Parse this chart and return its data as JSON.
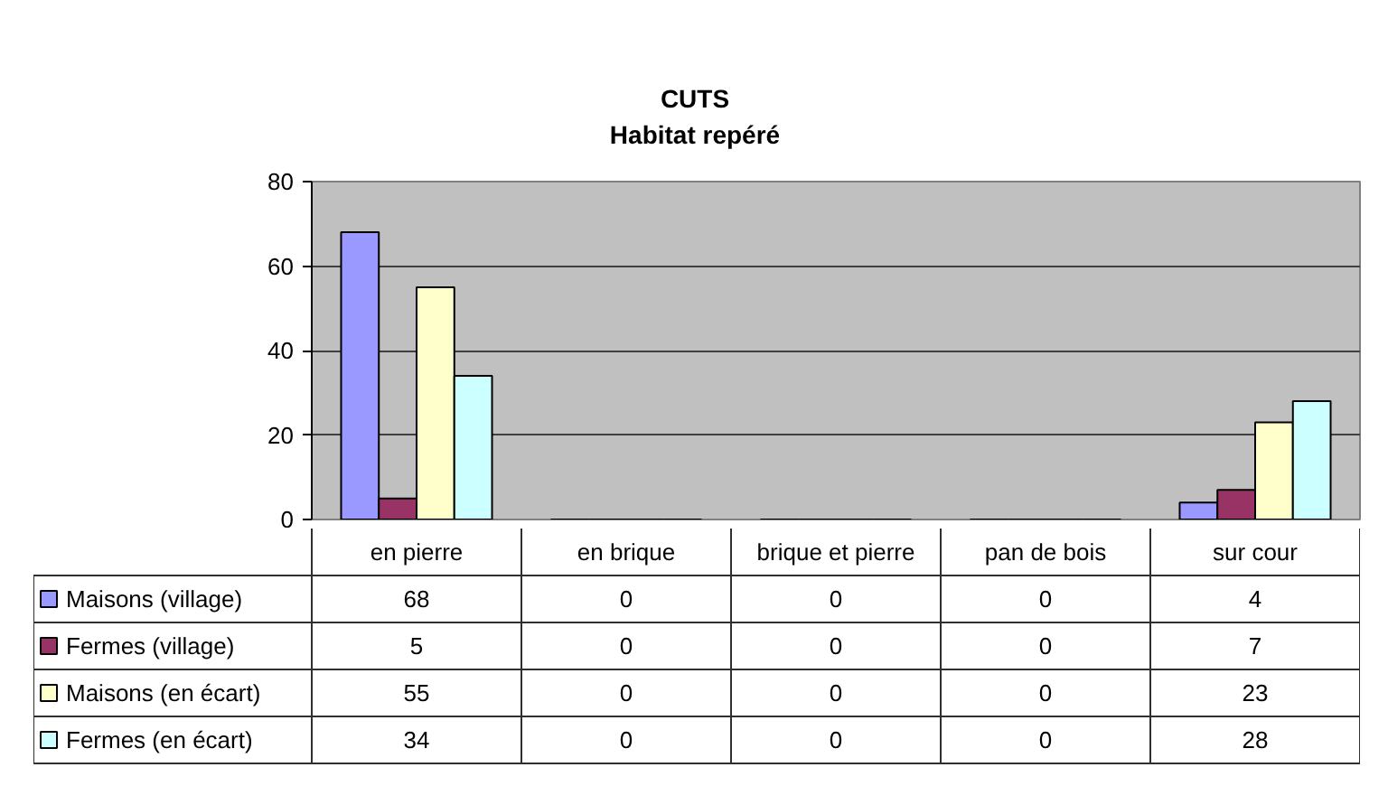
{
  "chart_data": {
    "type": "bar",
    "title": "CUTS",
    "subtitle": "Habitat repéré",
    "categories": [
      "en pierre",
      "en brique",
      "brique et pierre",
      "pan de bois",
      "sur cour"
    ],
    "series": [
      {
        "name": "Maisons (village)",
        "color": "#9999ff",
        "values": [
          68,
          0,
          0,
          0,
          4
        ]
      },
      {
        "name": "Fermes (village)",
        "color": "#993366",
        "values": [
          5,
          0,
          0,
          0,
          7
        ]
      },
      {
        "name": "Maisons (en écart)",
        "color": "#ffffcc",
        "values": [
          55,
          0,
          0,
          0,
          23
        ]
      },
      {
        "name": "Fermes (en écart)",
        "color": "#ccffff",
        "values": [
          34,
          0,
          0,
          0,
          28
        ]
      }
    ],
    "ylim": [
      0,
      80
    ],
    "yticks": [
      0,
      20,
      40,
      60,
      80
    ],
    "grid": "y",
    "legend": "bottom",
    "data_labels": true
  }
}
